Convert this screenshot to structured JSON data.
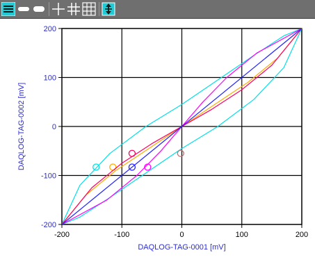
{
  "toolbar": {
    "buttons": [
      {
        "name": "line-style-thin-icon",
        "active": true
      },
      {
        "name": "line-style-medium-icon",
        "active": false
      },
      {
        "name": "line-style-thick-icon",
        "active": false
      },
      {
        "name": "grid-none-icon",
        "active": false
      },
      {
        "name": "grid-medium-icon",
        "active": false
      },
      {
        "name": "grid-fine-icon",
        "active": false
      },
      {
        "name": "autoscale-icon",
        "active": false
      }
    ],
    "bg_color": "#6f6f6f",
    "accent_color": "#1ecbd4"
  },
  "chart_data": {
    "type": "line",
    "title": "",
    "xlabel": "DAQLOG-TAG-0001 [mV]",
    "ylabel": "DAQLOG-TAG-0002 [mV]",
    "xlim": [
      -200,
      200
    ],
    "ylim": [
      -200,
      200
    ],
    "xticks": [
      -200,
      -100,
      0,
      100,
      200
    ],
    "yticks": [
      -200,
      -100,
      0,
      100,
      200
    ],
    "grid": true,
    "label_color": "#2b2bd6",
    "series": [
      {
        "color": "#00e0e8",
        "kind": "ellipse",
        "x": [
          -200,
          -170,
          -120,
          -60,
          0,
          60,
          120,
          170,
          200,
          170,
          120,
          60,
          0,
          -60,
          -120,
          -170,
          -200
        ],
        "y": [
          -200,
          -120,
          -55,
          0,
          45,
          95,
          145,
          185,
          200,
          120,
          55,
          0,
          -45,
          -95,
          -145,
          -185,
          -200
        ],
        "marker": {
          "x": -143,
          "y": -83
        }
      },
      {
        "color": "#ffaa00",
        "kind": "ellipse",
        "x": [
          -200,
          -160,
          -110,
          -55,
          0,
          55,
          110,
          160,
          200,
          160,
          110,
          55,
          0,
          -55,
          -110,
          -160,
          -200
        ],
        "y": [
          -200,
          -140,
          -90,
          -45,
          0,
          45,
          90,
          140,
          200,
          140,
          90,
          45,
          0,
          -45,
          -90,
          -140,
          -200
        ],
        "marker": {
          "x": -115,
          "y": -83
        }
      },
      {
        "color": "#ff0060",
        "kind": "s-curve",
        "x": [
          -200,
          -150,
          -100,
          -50,
          0,
          50,
          100,
          150,
          200
        ],
        "y": [
          -200,
          -125,
          -75,
          -35,
          0,
          35,
          75,
          125,
          200
        ],
        "marker": {
          "x": -83,
          "y": -55
        }
      },
      {
        "color": "#ff00ff",
        "kind": "s-curve",
        "x": [
          -200,
          -125,
          -75,
          -35,
          0,
          35,
          75,
          125,
          200
        ],
        "y": [
          -200,
          -150,
          -100,
          -50,
          0,
          50,
          100,
          150,
          200
        ],
        "marker": {
          "x": -57,
          "y": -83
        }
      },
      {
        "color": "#2222ff",
        "kind": "line",
        "x": [
          -200,
          200
        ],
        "y": [
          -200,
          200
        ],
        "marker": {
          "x": -83,
          "y": -83
        }
      },
      {
        "color": "#c07070",
        "kind": "point",
        "x": [],
        "y": [],
        "marker": {
          "x": -2,
          "y": -55
        }
      }
    ]
  }
}
